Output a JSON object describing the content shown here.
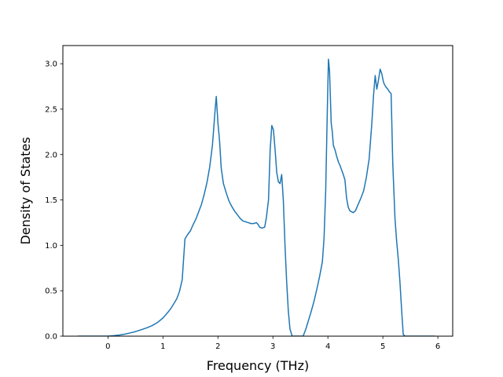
{
  "chart_data": {
    "type": "line",
    "title": "",
    "xlabel": "Frequency (THz)",
    "ylabel": "Density of States",
    "xlim": [
      -0.82,
      6.27
    ],
    "ylim": [
      0.0,
      3.2
    ],
    "xticks": [
      0,
      1,
      2,
      3,
      4,
      5,
      6
    ],
    "yticks": [
      0.0,
      0.5,
      1.0,
      1.5,
      2.0,
      2.5,
      3.0
    ],
    "xtick_labels": [
      "0",
      "1",
      "2",
      "3",
      "4",
      "5",
      "6"
    ],
    "ytick_labels": [
      "0.0",
      "0.5",
      "1.0",
      "1.5",
      "2.0",
      "2.5",
      "3.0"
    ],
    "grid": false,
    "legend": false,
    "line_color": "#1f77b4",
    "series": [
      {
        "x": [
          -0.55,
          -0.4,
          -0.2,
          0.0,
          0.1,
          0.2,
          0.3,
          0.4,
          0.5,
          0.6,
          0.7,
          0.8,
          0.9,
          1.0,
          1.05,
          1.1,
          1.15,
          1.2,
          1.25,
          1.3,
          1.35,
          1.4,
          1.42,
          1.45,
          1.5,
          1.55,
          1.6,
          1.65,
          1.7,
          1.75,
          1.8,
          1.85,
          1.9,
          1.95,
          1.97,
          2.0,
          2.03,
          2.06,
          2.1,
          2.15,
          2.2,
          2.25,
          2.3,
          2.35,
          2.4,
          2.45,
          2.5,
          2.55,
          2.6,
          2.65,
          2.7,
          2.73,
          2.76,
          2.8,
          2.85,
          2.88,
          2.92,
          2.95,
          2.98,
          3.01,
          3.04,
          3.07,
          3.1,
          3.13,
          3.16,
          3.19,
          3.22,
          3.25,
          3.28,
          3.31,
          3.35,
          3.4,
          3.45,
          3.5,
          3.55,
          3.6,
          3.65,
          3.7,
          3.75,
          3.8,
          3.85,
          3.9,
          3.93,
          3.96,
          3.99,
          4.01,
          4.03,
          4.06,
          4.08,
          4.1,
          4.13,
          4.16,
          4.19,
          4.22,
          4.25,
          4.28,
          4.31,
          4.34,
          4.37,
          4.4,
          4.43,
          4.46,
          4.5,
          4.55,
          4.6,
          4.65,
          4.7,
          4.75,
          4.8,
          4.83,
          4.86,
          4.89,
          4.92,
          4.95,
          4.98,
          5.01,
          5.03,
          5.06,
          5.09,
          5.12,
          5.15,
          5.18,
          5.2,
          5.22,
          5.25,
          5.28,
          5.31,
          5.34,
          5.37,
          5.4,
          5.42,
          5.5,
          5.6,
          5.8,
          5.95
        ],
        "y": [
          0.0,
          0.0,
          0.0,
          0.0,
          0.005,
          0.012,
          0.022,
          0.035,
          0.05,
          0.07,
          0.09,
          0.115,
          0.15,
          0.2,
          0.235,
          0.27,
          0.31,
          0.36,
          0.41,
          0.49,
          0.62,
          1.07,
          1.09,
          1.12,
          1.16,
          1.23,
          1.29,
          1.37,
          1.45,
          1.56,
          1.69,
          1.86,
          2.1,
          2.5,
          2.64,
          2.35,
          2.15,
          1.85,
          1.68,
          1.58,
          1.49,
          1.43,
          1.38,
          1.34,
          1.3,
          1.27,
          1.26,
          1.25,
          1.24,
          1.24,
          1.25,
          1.23,
          1.2,
          1.19,
          1.2,
          1.3,
          1.5,
          2.05,
          2.32,
          2.27,
          2.05,
          1.8,
          1.7,
          1.68,
          1.78,
          1.49,
          1.0,
          0.6,
          0.28,
          0.08,
          0.0,
          0.0,
          0.0,
          0.0,
          0.0,
          0.08,
          0.18,
          0.28,
          0.39,
          0.52,
          0.66,
          0.82,
          1.08,
          1.6,
          2.5,
          3.05,
          2.92,
          2.35,
          2.25,
          2.1,
          2.05,
          1.98,
          1.92,
          1.88,
          1.83,
          1.78,
          1.72,
          1.52,
          1.42,
          1.38,
          1.37,
          1.36,
          1.38,
          1.45,
          1.52,
          1.6,
          1.75,
          1.95,
          2.35,
          2.65,
          2.87,
          2.72,
          2.82,
          2.94,
          2.89,
          2.8,
          2.77,
          2.74,
          2.72,
          2.69,
          2.67,
          1.9,
          1.6,
          1.3,
          1.05,
          0.85,
          0.6,
          0.3,
          0.02,
          0.0,
          0.0,
          0.0,
          0.0,
          0.0,
          0.0
        ]
      }
    ]
  }
}
